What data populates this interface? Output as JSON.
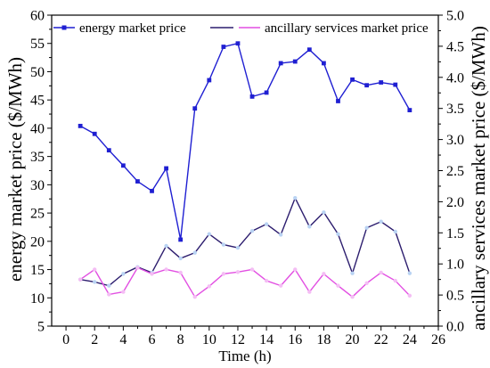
{
  "chart_data": {
    "type": "line",
    "xlabel": "Time (h)",
    "ylabel": "energy market price ($/MWh)",
    "y2label": "ancillary services market price ($/MWh)",
    "xlim": [
      -1,
      26
    ],
    "ylim": [
      5,
      60
    ],
    "y2lim": [
      0,
      5
    ],
    "grid": false,
    "legend": "top",
    "x_ticks": [
      "0",
      "2",
      "4",
      "6",
      "8",
      "10",
      "12",
      "14",
      "16",
      "18",
      "20",
      "22",
      "24",
      "26"
    ],
    "y_ticks": [
      "5",
      "10",
      "15",
      "20",
      "25",
      "30",
      "35",
      "40",
      "45",
      "50",
      "55",
      "60"
    ],
    "y2_ticks": [
      "0.0",
      "0.5",
      "1.0",
      "1.5",
      "2.0",
      "2.5",
      "3.0",
      "3.5",
      "4.0",
      "4.5",
      "5.0"
    ],
    "x": [
      1,
      2,
      3,
      4,
      5,
      6,
      7,
      8,
      9,
      10,
      11,
      12,
      13,
      14,
      15,
      16,
      17,
      18,
      19,
      20,
      21,
      22,
      23,
      24
    ],
    "series": [
      {
        "name": "energy market price",
        "axis": "left",
        "color": "#1f1fd2",
        "marker": "square",
        "marker_color": "#1f1fd2",
        "values": [
          40.4,
          39.0,
          36.1,
          33.4,
          30.6,
          28.9,
          32.9,
          20.3,
          43.5,
          48.5,
          54.4,
          55.0,
          45.6,
          46.3,
          51.5,
          51.8,
          53.9,
          51.5,
          44.8,
          48.6,
          47.6,
          48.1,
          47.7,
          43.2
        ]
      },
      {
        "axis": "right",
        "color": "#2c1d6e",
        "marker": "circle",
        "marker_color": "#b9d3f3",
        "values": [
          0.75,
          0.71,
          0.65,
          0.84,
          0.95,
          0.86,
          1.29,
          1.09,
          1.18,
          1.48,
          1.31,
          1.26,
          1.53,
          1.64,
          1.47,
          2.06,
          1.6,
          1.83,
          1.48,
          0.85,
          1.58,
          1.68,
          1.52,
          0.85
        ]
      },
      {
        "name": "ancillary services market price",
        "axis": "right",
        "color": "#e24fe2",
        "marker": "circle",
        "marker_color": "#f4bdf4",
        "values": [
          0.75,
          0.91,
          0.51,
          0.55,
          0.94,
          0.84,
          0.91,
          0.86,
          0.47,
          0.64,
          0.84,
          0.87,
          0.91,
          0.73,
          0.65,
          0.91,
          0.55,
          0.84,
          0.65,
          0.47,
          0.69,
          0.86,
          0.73,
          0.49
        ]
      }
    ]
  }
}
